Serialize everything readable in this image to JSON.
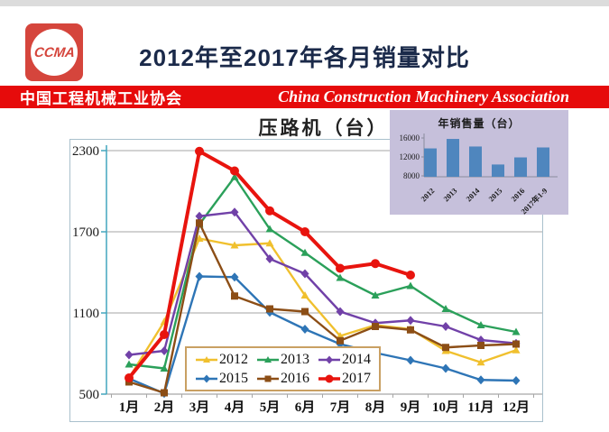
{
  "header": {
    "logo_text": "CCMA",
    "logo_color": "#d5453c",
    "title": "2012年至2017年各月销量对比"
  },
  "banner": {
    "cn": "中国工程机械工业协会",
    "en": "China Construction Machinery Association",
    "bg": "#e60b0b"
  },
  "chart_data": [
    {
      "type": "line",
      "title": "压路机（台）",
      "x_labels": [
        "1月",
        "2月",
        "3月",
        "4月",
        "5月",
        "6月",
        "7月",
        "8月",
        "9月",
        "10月",
        "11月",
        "12月"
      ],
      "ylim": [
        500,
        2300
      ],
      "yticks": [
        500,
        1100,
        1700,
        2300
      ],
      "grid": true,
      "legend_position": "inside-bottom-center",
      "axis_color": "#42a5bd",
      "grid_color": "#a6a6a6",
      "series": [
        {
          "name": "2012",
          "color": "#f0c02e",
          "marker": "triangle",
          "values": [
            620,
            1035,
            1650,
            1600,
            1615,
            1230,
            930,
            1010,
            980,
            820,
            735,
            825
          ]
        },
        {
          "name": "2013",
          "color": "#2ba05a",
          "marker": "triangle",
          "values": [
            720,
            690,
            1755,
            2105,
            1720,
            1545,
            1360,
            1230,
            1300,
            1130,
            1010,
            960
          ]
        },
        {
          "name": "2014",
          "color": "#7141a8",
          "marker": "diamond",
          "values": [
            790,
            820,
            1815,
            1845,
            1500,
            1390,
            1110,
            1025,
            1045,
            1000,
            900,
            875
          ]
        },
        {
          "name": "2015",
          "color": "#2e75b6",
          "marker": "diamond",
          "values": [
            615,
            505,
            1370,
            1365,
            1105,
            980,
            870,
            805,
            750,
            690,
            605,
            600
          ]
        },
        {
          "name": "2016",
          "color": "#8c4e16",
          "marker": "square",
          "values": [
            590,
            510,
            1765,
            1225,
            1130,
            1110,
            895,
            1000,
            975,
            845,
            860,
            870
          ]
        },
        {
          "name": "2017",
          "color": "#e8140e",
          "marker": "circle",
          "values": [
            620,
            940,
            2295,
            2150,
            1855,
            1700,
            1430,
            1465,
            1380,
            null,
            null,
            null
          ]
        }
      ]
    },
    {
      "type": "bar",
      "title": "年销售量（台）",
      "categories": [
        "2012",
        "2013",
        "2014",
        "2015",
        "2016",
        "2017年1-9"
      ],
      "values": [
        13800,
        15800,
        14200,
        10400,
        11900,
        14000
      ],
      "yticks": [
        8000,
        12000,
        16000
      ],
      "ylim": [
        8000,
        17000
      ],
      "bar_color": "#4f86be",
      "panel_bg": "#c6c0db",
      "axis_color": "#8b8b9e"
    }
  ]
}
